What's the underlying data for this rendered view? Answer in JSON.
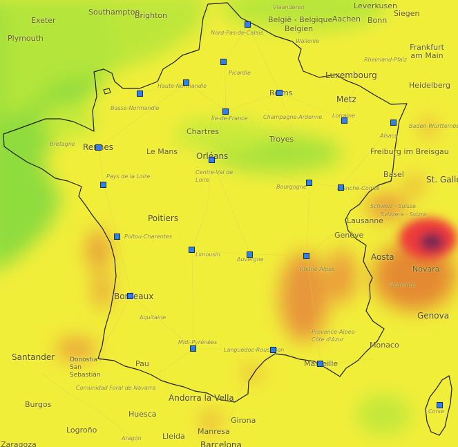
{
  "map": {
    "colors": {
      "good": "#8fdc3c",
      "fair": "#e8f23a",
      "moderate": "#f4ef36",
      "poor": "#e89a3a",
      "very_poor": "#ee3a3a",
      "extreme": "#7a2a52",
      "marker": "#2f7fe6"
    },
    "place_labels": {
      "southampton": "Southampton",
      "brighton": "Brighton",
      "exeter": "Exeter",
      "plymouth": "Plymouth",
      "vlaanderen": "Vlaanderen",
      "leverkusen": "Leverkusen",
      "aachen": "Aachen",
      "bonn": "Bonn",
      "siegen": "Siegen",
      "belgie": "België - Belgique",
      "belgien": "Belgien",
      "wallonie": "Wallonie",
      "nord_pas_de_calais": "Nord-Pas-de-Calais",
      "frankfurt": "Frankfurt am Main",
      "rheinland_pfalz": "Rheinland-Pfalz",
      "luxembourg": "Luxembourg",
      "heidelberg": "Heidelberg",
      "picardie": "Picardie",
      "haute_normandie": "Haute-Normandie",
      "basse_normandie": "Basse-Normandie",
      "reims": "Reims",
      "metz": "Metz",
      "ile_de_france": "Île-de-France",
      "champagne_ardenne": "Champagne-Ardenne",
      "lorraine": "Lorraine",
      "baden_wurttemberg": "Baden-Württemberg",
      "chartres": "Chartres",
      "bretagne": "Bretagne",
      "rennes": "Rennes",
      "le_mans": "Le Mans",
      "orleans": "Orléans",
      "troyes": "Troyes",
      "freiburg": "Freiburg im Breisgau",
      "alsace": "Alsace",
      "pays_de_la_loire": "Pays de la Loire",
      "centre": "Centre-Val de Loire",
      "bourgogne": "Bourgogne",
      "franche_comte": "Franche-Comté",
      "basel": "Basel",
      "st_gallen": "St. Gallen",
      "schweiz": "Schweiz - Suisse",
      "svizzera": "Svizzera - Svizra",
      "poitiers": "Poitiers",
      "lausanne": "Lausanne",
      "poitou": "Poitou-Charentes",
      "geneve": "Genève",
      "limousin": "Limousin",
      "auvergne": "Auvergne",
      "rhone_alpes": "Rhône-Alpes",
      "aosta": "Aosta",
      "novara": "Novara",
      "piemonte": "Piemonte",
      "bordeaux": "Bordeaux",
      "aquitaine": "Aquitaine",
      "genova": "Genova",
      "provence": "Provence-Alpes-Côte d'Azur",
      "midi_pyrenees": "Midi-Pyrénées",
      "languedoc": "Languedoc-Roussillon",
      "monaco": "Monaco",
      "santander": "Santander",
      "donostia": "Donostia - San Sebastián",
      "pau": "Pau",
      "marseille": "Marseille",
      "navarra": "Comunidad Foral de Navarra",
      "andorra": "Andorra la Vella",
      "burgos": "Burgos",
      "huesca": "Huesca",
      "girona": "Girona",
      "logrono": "Logroño",
      "aragon": "Aragón",
      "lleida": "Lleida",
      "manresa": "Manresa",
      "zaragoza": "Zaragoza",
      "barcelona": "Barcelona",
      "corse": "Corse"
    }
  }
}
